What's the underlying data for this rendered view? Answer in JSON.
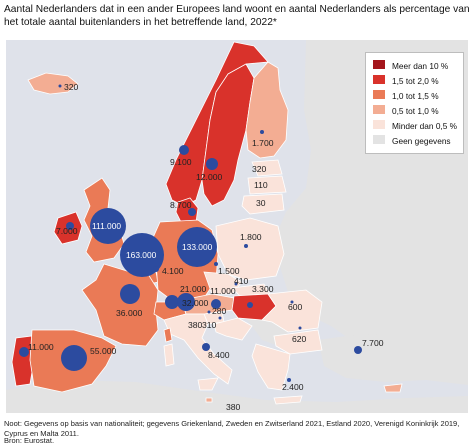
{
  "title": "Aantal Nederlanders dat in een ander Europees land woont en aantal Nederlanders als percentage van het totale aantal buitenlanders in het betreffende land, 2022*",
  "colors": {
    "ocean": "#dfe2ea",
    "nodata": "#e3e3e3",
    "bubble": "#2c4b9f",
    "cat_over_10": "#a4161c",
    "cat_15_20": "#d9322b",
    "cat_10_15": "#ea7a56",
    "cat_05_10": "#f3ad93",
    "cat_under_05": "#fae3da"
  },
  "legend": [
    {
      "label": "Meer dan 10 %",
      "color": "#a4161c"
    },
    {
      "label": "1,5 tot 2,0 %",
      "color": "#d9322b"
    },
    {
      "label": "1,0 tot 1,5 %",
      "color": "#ea7a56"
    },
    {
      "label": "0,5 tot 1,0 %",
      "color": "#f3ad93"
    },
    {
      "label": "Minder dan 0,5 %",
      "color": "#fae3da"
    },
    {
      "label": "Geen gegevens",
      "color": "#e3e3e3"
    }
  ],
  "countries": [
    {
      "name": "Iceland",
      "category": "cat_05_10"
    },
    {
      "name": "Norway",
      "category": "cat_15_20"
    },
    {
      "name": "Sweden",
      "category": "cat_15_20"
    },
    {
      "name": "Finland",
      "category": "cat_05_10"
    },
    {
      "name": "Estonia",
      "category": "cat_under_05"
    },
    {
      "name": "Latvia",
      "category": "cat_under_05"
    },
    {
      "name": "Lithuania",
      "category": "cat_under_05"
    },
    {
      "name": "Denmark",
      "category": "cat_15_20"
    },
    {
      "name": "Ireland",
      "category": "cat_15_20"
    },
    {
      "name": "United Kingdom",
      "category": "cat_10_15"
    },
    {
      "name": "Belgium",
      "category": "cat_over_10"
    },
    {
      "name": "Luxembourg",
      "category": "cat_10_15"
    },
    {
      "name": "France",
      "category": "cat_10_15"
    },
    {
      "name": "Germany",
      "category": "cat_10_15"
    },
    {
      "name": "Poland",
      "category": "cat_under_05"
    },
    {
      "name": "Czechia",
      "category": "cat_under_05"
    },
    {
      "name": "Slovakia",
      "category": "cat_under_05"
    },
    {
      "name": "Austria",
      "category": "cat_05_10"
    },
    {
      "name": "Switzerland",
      "category": "cat_10_15"
    },
    {
      "name": "Hungary",
      "category": "cat_15_20"
    },
    {
      "name": "Slovenia",
      "category": "cat_under_05"
    },
    {
      "name": "Croatia",
      "category": "cat_under_05"
    },
    {
      "name": "Italy",
      "category": "cat_under_05"
    },
    {
      "name": "Portugal",
      "category": "cat_15_20"
    },
    {
      "name": "Spain",
      "category": "cat_10_15"
    },
    {
      "name": "Romania",
      "category": "cat_under_05"
    },
    {
      "name": "Bulgaria",
      "category": "cat_under_05"
    },
    {
      "name": "Greece",
      "category": "cat_under_05"
    },
    {
      "name": "Malta",
      "category": "cat_05_10"
    },
    {
      "name": "Cyprus",
      "category": "cat_05_10"
    }
  ],
  "bubbles": [
    {
      "country": "Germany",
      "value": "133.000"
    },
    {
      "country": "Belgium",
      "value": "163.000"
    },
    {
      "country": "United Kingdom",
      "value": "111.000"
    },
    {
      "country": "Spain",
      "value": "55.000"
    },
    {
      "country": "France",
      "value": "36.000"
    },
    {
      "country": "Switzerland",
      "value": "21.000"
    },
    {
      "country": "Sweden",
      "value": "12.000"
    },
    {
      "country": "Norway",
      "value": "9.100"
    },
    {
      "country": "Portugal",
      "value": "11.000"
    },
    {
      "country": "Austria",
      "value": "11.000"
    },
    {
      "country": "Italy",
      "value": "32.000"
    },
    {
      "country": "Denmark",
      "value": "8.700"
    },
    {
      "country": "Ireland",
      "value": "7.000"
    },
    {
      "country": "Luxembourg",
      "value": "4.100"
    },
    {
      "country": "Hungary",
      "value": "3.300"
    },
    {
      "country": "Malta",
      "value": "8.400"
    },
    {
      "country": "Cyprus",
      "value": "7.700"
    },
    {
      "country": "Finland",
      "value": "1.700"
    },
    {
      "country": "Poland",
      "value": "1.800"
    },
    {
      "country": "Czechia",
      "value": "1.500"
    },
    {
      "country": "Greece",
      "value": "2.400"
    },
    {
      "country": "Slovenia",
      "value": "310"
    },
    {
      "country": "Croatia",
      "value": "280"
    },
    {
      "country": "Slovakia",
      "value": "410"
    },
    {
      "country": "Romania",
      "value": "600"
    },
    {
      "country": "Bulgaria",
      "value": "620"
    },
    {
      "country": "Iceland",
      "value": "320"
    },
    {
      "country": "Estonia",
      "value": "320"
    },
    {
      "country": "Latvia",
      "value": "110"
    },
    {
      "country": "Lithuania",
      "value": "30"
    },
    {
      "country": "Liechtenstein",
      "value": "380"
    },
    {
      "country": "Balkan",
      "value": "380"
    }
  ],
  "footnote": "Noot: Gegevens op basis van nationaliteit; gegevens Griekenland, Zweden en Zwitserland 2021, Estland 2020, Verenigd Koninkrijk 2019, Cyprus en Malta 2011.",
  "source": "Bron: Eurostat."
}
